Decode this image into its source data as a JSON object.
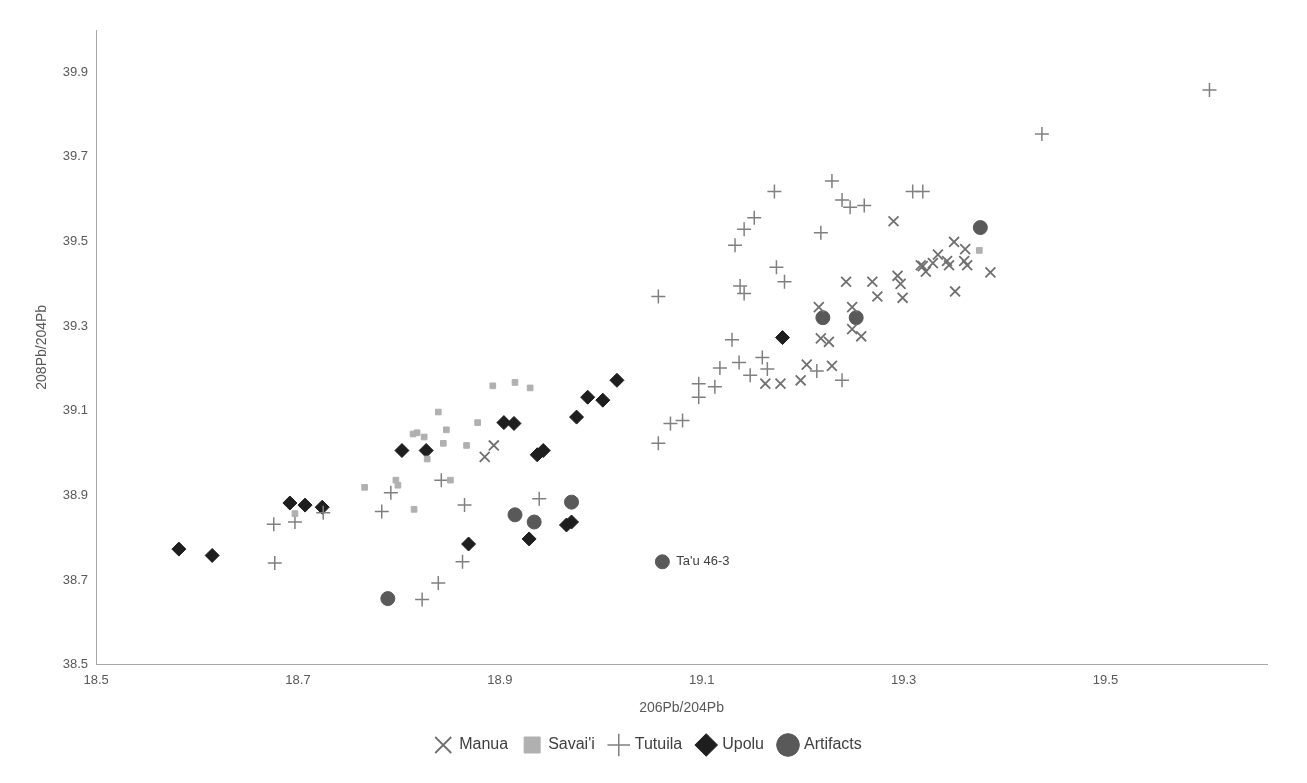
{
  "chart_data": {
    "type": "scatter",
    "xlabel": "206Pb/204Pb",
    "ylabel": "208Pb/204Pb",
    "xlim": [
      18.5,
      19.66
    ],
    "xticks": [
      18.5,
      18.7,
      18.9,
      19.1,
      19.3,
      19.5
    ],
    "ylim": [
      38.5,
      40.0
    ],
    "yticks": [
      38.5,
      38.7,
      38.9,
      39.1,
      39.3,
      39.5,
      39.7,
      39.9
    ],
    "grid": false,
    "legend": "bottom",
    "annotations": [
      {
        "text": "Ta'u 46-3",
        "x": 19.061,
        "y": 38.743
      }
    ],
    "series": [
      {
        "name": "Manua",
        "color": "#707070",
        "marker": "x",
        "x": [
          18.885,
          18.894,
          19.163,
          19.178,
          19.198,
          19.204,
          19.229,
          19.216,
          19.249,
          19.218,
          19.226,
          19.249,
          19.258,
          19.243,
          19.269,
          19.274,
          19.294,
          19.297,
          19.299,
          19.29,
          19.319,
          19.329,
          19.334,
          19.35,
          19.361,
          19.345,
          19.343,
          19.36,
          19.363,
          19.351,
          19.386,
          19.317,
          19.322
        ],
        "values": [
          38.991,
          39.018,
          39.164,
          39.164,
          39.172,
          39.209,
          39.206,
          39.345,
          39.345,
          39.271,
          39.263,
          39.293,
          39.276,
          39.405,
          39.405,
          39.37,
          39.419,
          39.4,
          39.367,
          39.548,
          39.442,
          39.449,
          39.469,
          39.499,
          39.482,
          39.444,
          39.454,
          39.454,
          39.444,
          39.382,
          39.427,
          39.444,
          39.429
        ]
      },
      {
        "name": "Savai'i",
        "color": "#b0b0b0",
        "marker": "square",
        "x": [
          18.839,
          18.847,
          18.818,
          18.825,
          18.814,
          18.844,
          18.828,
          18.797,
          18.799,
          18.766,
          18.815,
          18.851,
          18.697,
          18.893,
          18.915,
          18.93,
          18.878,
          18.867,
          19.375
        ],
        "values": [
          39.097,
          39.055,
          39.048,
          39.038,
          39.045,
          39.023,
          38.986,
          38.936,
          38.924,
          38.919,
          38.867,
          38.936,
          38.857,
          39.159,
          39.167,
          39.154,
          39.072,
          39.018,
          39.479
        ]
      },
      {
        "name": "Tutuila",
        "color": "#808080",
        "marker": "cross",
        "x": [
          18.676,
          18.697,
          18.677,
          18.783,
          18.792,
          18.842,
          18.823,
          18.839,
          18.865,
          18.939,
          18.863,
          19.057,
          19.069,
          19.081,
          19.097,
          19.097,
          19.113,
          19.118,
          19.137,
          19.148,
          19.16,
          19.165,
          19.214,
          19.239,
          19.13,
          19.057,
          19.133,
          19.142,
          19.152,
          19.172,
          19.138,
          19.142,
          19.174,
          19.182,
          19.218,
          19.229,
          19.239,
          19.247,
          19.261,
          19.309,
          19.319,
          19.437,
          19.603,
          18.725
        ],
        "values": [
          38.832,
          38.837,
          38.74,
          38.862,
          38.906,
          38.936,
          38.654,
          38.693,
          38.877,
          38.892,
          38.743,
          39.023,
          39.07,
          39.077,
          39.132,
          39.164,
          39.157,
          39.201,
          39.214,
          39.184,
          39.226,
          39.199,
          39.194,
          39.172,
          39.268,
          39.37,
          39.491,
          39.529,
          39.556,
          39.618,
          39.395,
          39.377,
          39.439,
          39.405,
          39.521,
          39.643,
          39.598,
          39.581,
          39.585,
          39.618,
          39.618,
          39.754,
          39.858,
          38.859
        ]
      },
      {
        "name": "Upolu",
        "color": "#1e1e1e",
        "marker": "diamond",
        "x": [
          18.582,
          18.615,
          18.692,
          18.707,
          18.724,
          18.803,
          18.827,
          18.869,
          18.904,
          18.914,
          18.937,
          18.943,
          18.976,
          18.987,
          19.002,
          19.016,
          18.929,
          18.966,
          18.971,
          19.18
        ],
        "values": [
          38.773,
          38.758,
          38.882,
          38.877,
          38.872,
          39.006,
          39.006,
          38.785,
          39.072,
          39.07,
          38.996,
          39.006,
          39.085,
          39.132,
          39.125,
          39.172,
          38.797,
          38.83,
          38.837,
          39.273
        ]
      },
      {
        "name": "Artifacts",
        "color": "#595959",
        "marker": "circle",
        "x": [
          18.789,
          18.915,
          18.934,
          18.971,
          19.061,
          19.22,
          19.253,
          19.376
        ],
        "values": [
          38.656,
          38.854,
          38.837,
          38.884,
          38.743,
          39.32,
          39.32,
          39.533
        ]
      }
    ]
  }
}
